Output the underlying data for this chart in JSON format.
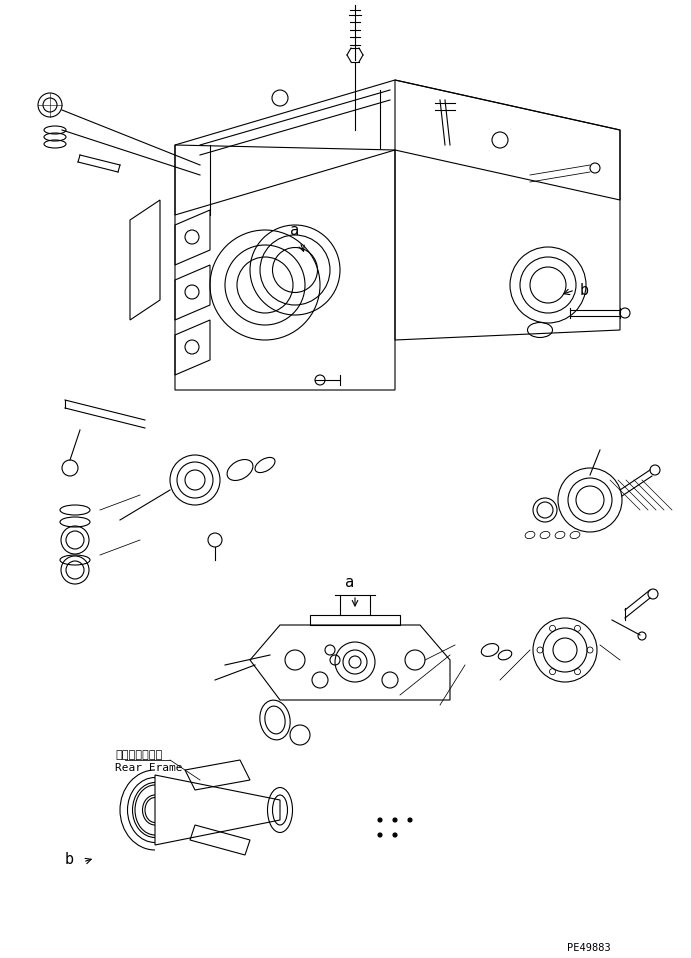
{
  "background_color": "#ffffff",
  "line_color": "#000000",
  "part_number": "PE49883",
  "labels": {
    "a_top": "a",
    "b_right": "b",
    "a_bottom": "a",
    "b_bottom": "b",
    "rear_frame_jp": "リヤーフレーム",
    "rear_frame_en": "Rear Frame"
  },
  "fig_width": 6.91,
  "fig_height": 9.58,
  "dpi": 100
}
